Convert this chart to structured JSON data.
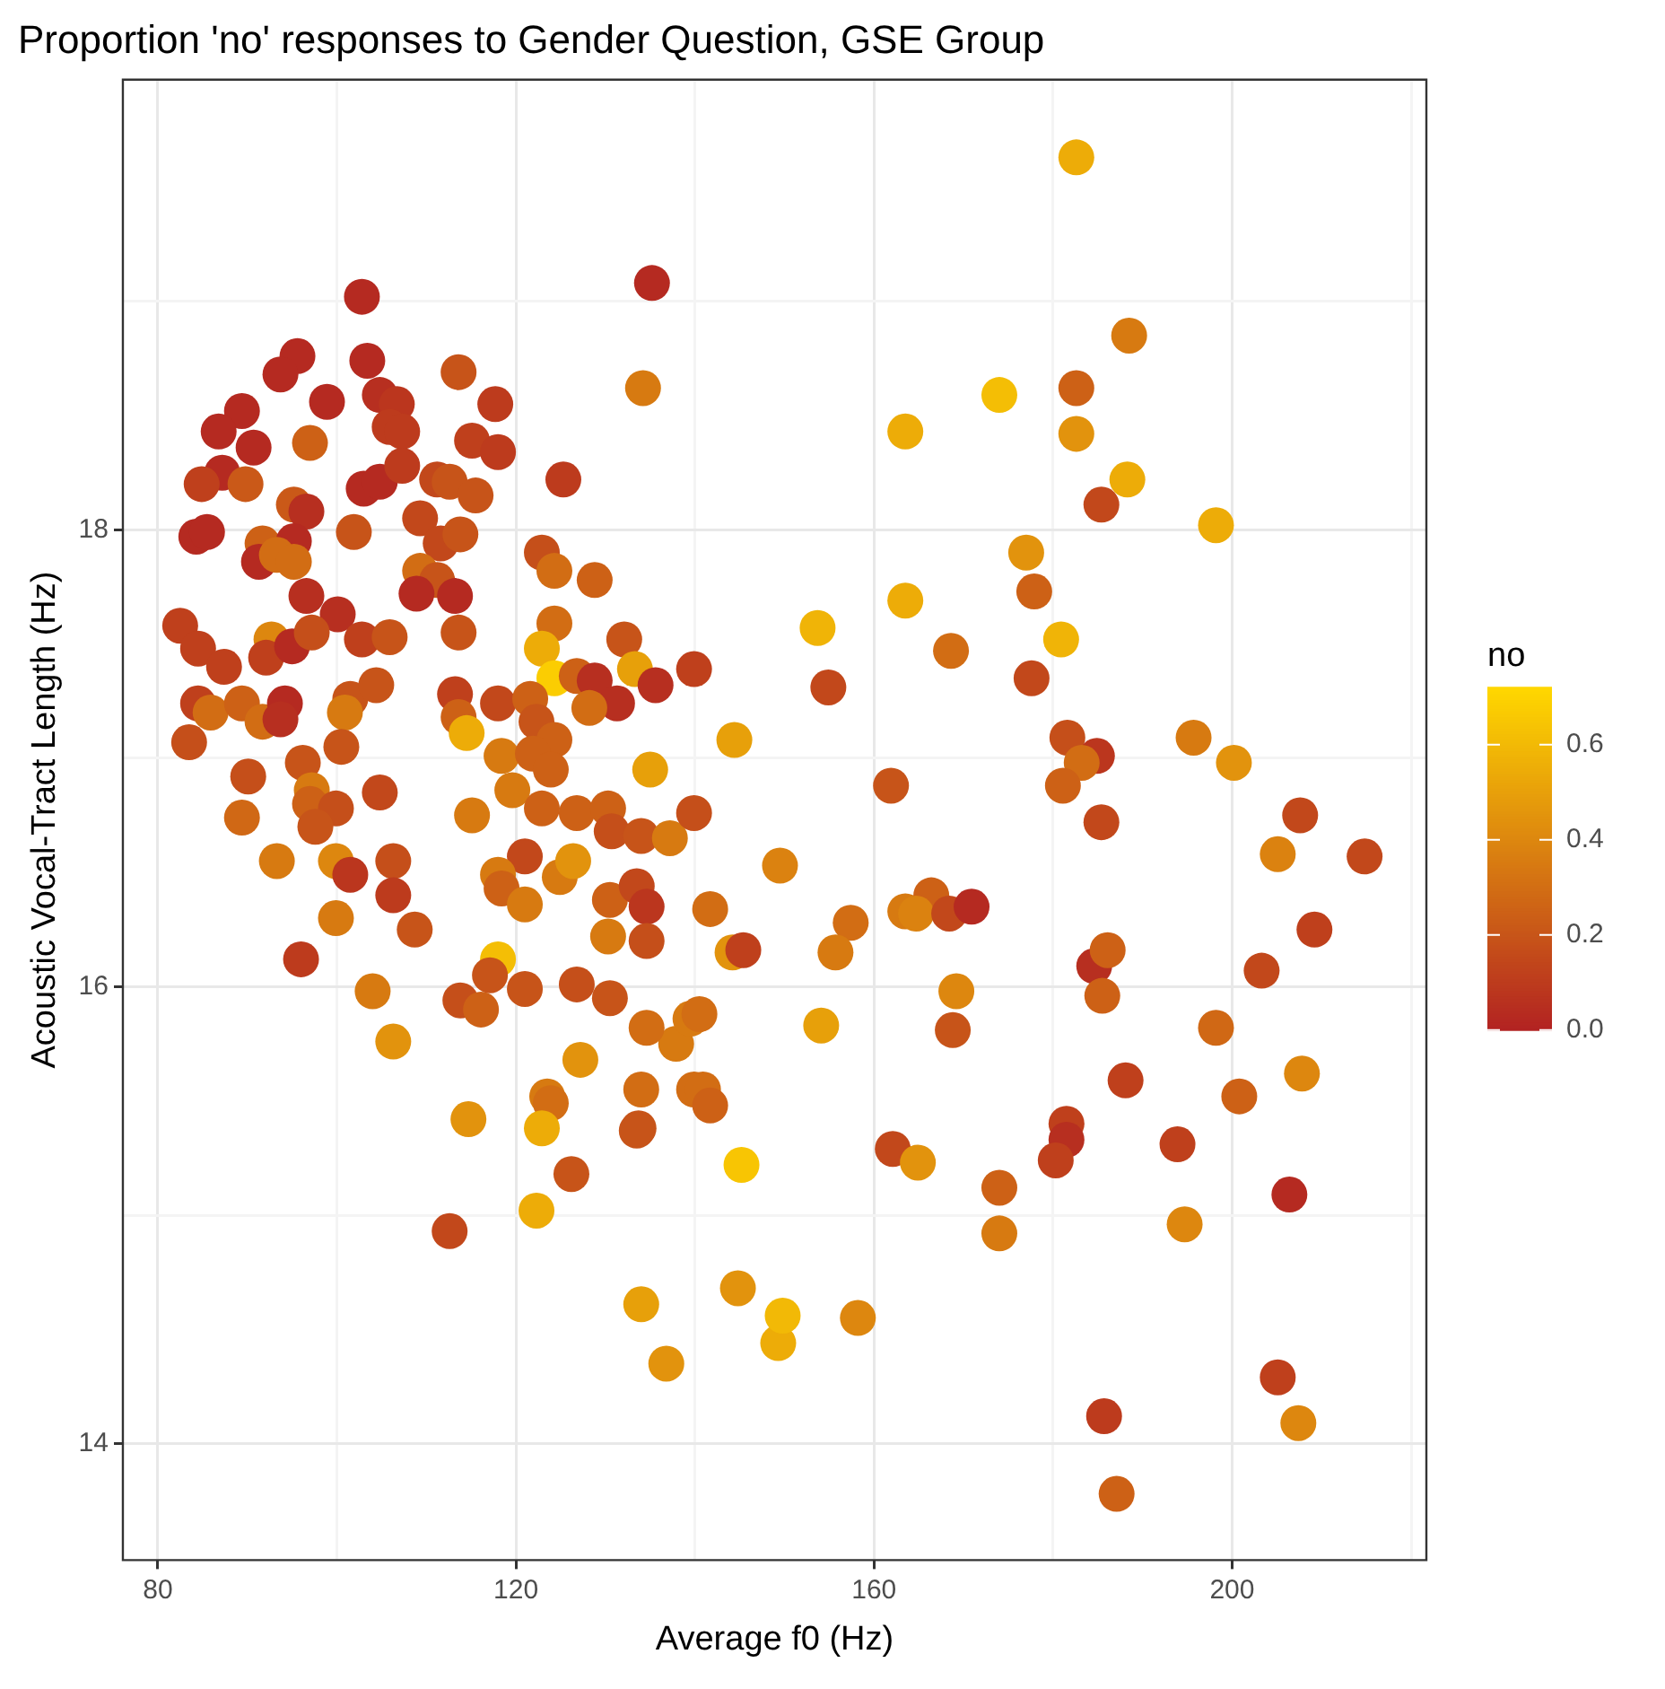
{
  "chart_data": {
    "type": "scatter",
    "title": "Proportion 'no' responses to Gender Question, GSE Group",
    "xlabel": "Average f0 (Hz)",
    "ylabel": "Acoustic Vocal-Tract Length (Hz)",
    "clabel": "no",
    "xlim": [
      76.1,
      221.7
    ],
    "xticks": [
      80,
      {
        "value": 100,
        "label": null
      },
      120,
      {
        "value": 140,
        "label": null
      },
      160,
      {
        "value": 180,
        "label": null
      },
      200,
      {
        "value": 220,
        "label": null
      }
    ],
    "ylim": [
      13.49,
      19.97
    ],
    "yticks": [
      14,
      {
        "value": 15,
        "label": null
      },
      16,
      {
        "value": 17,
        "label": null
      },
      18,
      {
        "value": 19,
        "label": null
      }
    ],
    "clim": [
      0,
      0.72
    ],
    "cticks": [
      {
        "value": 0,
        "label": "0.0"
      },
      0.2,
      0.4,
      0.6
    ],
    "grid": true,
    "marker": "circle",
    "x": [
      102.8,
      135.2,
      95.6,
      93.7,
      103.4,
      98.9,
      104.8,
      106.7,
      113.6,
      117.7,
      89.4,
      86.8,
      90.7,
      97.0,
      105.9,
      107.3,
      115.1,
      118.0,
      134.2,
      87.2,
      84.9,
      89.8,
      95.2,
      96.6,
      101.9,
      103.0,
      104.8,
      107.3,
      111.2,
      112.6,
      109.3,
      115.5,
      125.3,
      84.3,
      85.5,
      91.7,
      91.3,
      95.2,
      93.3,
      95.2,
      111.6,
      113.8,
      109.3,
      111.2,
      108.9,
      113.2,
      96.6,
      100.1,
      122.9,
      124.3,
      128.8,
      124.3,
      82.5,
      84.5,
      87.4,
      92.7,
      92.1,
      95.0,
      97.2,
      102.8,
      105.9,
      113.6,
      122.9,
      124.3,
      126.8,
      128.8,
      132.1,
      133.3,
      135.6,
      131.3,
      139.9,
      84.5,
      85.9,
      89.4,
      91.7,
      94.2,
      93.7,
      101.5,
      100.9,
      104.4,
      113.2,
      113.6,
      114.5,
      118.0,
      121.6,
      122.3,
      128.2,
      124.3,
      83.5,
      100.5,
      96.2,
      90.1,
      118.4,
      121.9,
      123.9,
      135.0,
      89.4,
      97.2,
      97.0,
      99.9,
      97.6,
      104.8,
      93.3,
      99.9,
      101.5,
      106.3,
      106.3,
      99.9,
      108.7,
      96.0,
      104.0,
      106.3,
      112.6,
      114.7,
      119.6,
      122.9,
      126.8,
      130.3,
      130.7,
      134.0,
      137.2,
      139.9,
      115.1,
      121.0,
      118.0,
      118.4,
      121.0,
      124.9,
      126.4,
      130.5,
      133.5,
      134.6,
      130.3,
      134.6,
      118.0,
      117.1,
      113.8,
      116.1,
      121.0,
      126.8,
      137.9,
      139.5,
      140.5,
      127.2,
      134.0,
      133.7,
      123.5,
      123.9,
      122.9,
      126.2,
      122.3,
      139.9,
      140.9,
      141.7,
      133.5,
      145.2,
      162.1,
      163.5,
      154.9,
      153.7,
      144.4,
      163.5,
      161.9,
      149.5,
      141.7,
      144.2,
      145.4,
      157.4,
      155.7,
      163.5,
      130.5,
      134.6,
      154.1,
      134.0,
      136.8,
      144.8,
      149.3,
      149.8,
      158.2,
      182.6,
      188.5,
      174.0,
      182.6,
      182.6,
      188.3,
      185.4,
      198.2,
      177.0,
      177.9,
      168.6,
      180.9,
      177.6,
      181.6,
      184.9,
      183.2,
      195.7,
      200.2,
      181.1,
      185.4,
      207.6,
      205.1,
      214.8,
      166.4,
      164.7,
      168.4,
      170.9,
      209.2,
      203.3,
      184.6,
      186.1,
      185.5,
      169.2,
      168.8,
      198.2,
      188.1,
      207.8,
      200.8,
      164.9,
      174.0,
      174.0,
      181.5,
      181.5,
      180.3,
      193.9,
      194.7,
      206.4,
      205.1,
      207.4,
      185.7,
      187.1
    ],
    "values": [
      19.02,
      19.08,
      18.76,
      18.68,
      18.74,
      18.56,
      18.59,
      18.55,
      18.69,
      18.55,
      18.52,
      18.43,
      18.36,
      18.38,
      18.45,
      18.43,
      18.39,
      18.34,
      18.62,
      18.25,
      18.2,
      18.2,
      18.11,
      18.08,
      17.99,
      18.18,
      18.21,
      18.28,
      18.22,
      18.21,
      18.05,
      18.15,
      18.22,
      17.97,
      17.99,
      17.94,
      17.86,
      17.95,
      17.89,
      17.86,
      17.94,
      17.98,
      17.82,
      17.78,
      17.72,
      17.71,
      17.71,
      17.63,
      17.9,
      17.82,
      17.78,
      17.59,
      17.58,
      17.48,
      17.4,
      17.52,
      17.44,
      17.49,
      17.55,
      17.52,
      17.53,
      17.55,
      17.48,
      17.35,
      17.36,
      17.34,
      17.52,
      17.39,
      17.32,
      17.24,
      17.39,
      17.24,
      17.2,
      17.24,
      17.16,
      17.24,
      17.17,
      17.26,
      17.2,
      17.32,
      17.28,
      17.18,
      17.11,
      17.24,
      17.26,
      17.16,
      17.22,
      17.08,
      17.07,
      17.05,
      16.98,
      16.92,
      17.01,
      17.02,
      16.95,
      16.95,
      16.74,
      16.86,
      16.8,
      16.78,
      16.7,
      16.85,
      16.55,
      16.55,
      16.49,
      16.55,
      16.4,
      16.3,
      16.25,
      16.12,
      15.98,
      15.76,
      14.93,
      15.42,
      16.86,
      16.78,
      16.76,
      16.78,
      16.68,
      16.66,
      16.65,
      16.76,
      16.75,
      16.57,
      16.49,
      16.43,
      16.36,
      16.48,
      16.55,
      16.38,
      16.44,
      16.35,
      16.22,
      16.2,
      16.12,
      16.05,
      15.94,
      15.9,
      15.99,
      16.01,
      15.75,
      15.86,
      15.88,
      15.68,
      15.55,
      15.38,
      15.52,
      15.49,
      15.38,
      15.18,
      15.02,
      15.55,
      15.55,
      15.48,
      15.37,
      15.22,
      15.29,
      18.43,
      17.31,
      17.57,
      17.08,
      17.69,
      16.88,
      16.53,
      16.34,
      16.15,
      16.16,
      16.28,
      16.15,
      16.33,
      15.95,
      15.82,
      15.83,
      14.61,
      14.35,
      14.68,
      14.44,
      14.56,
      14.55,
      19.63,
      18.85,
      18.59,
      18.62,
      18.42,
      18.22,
      18.11,
      18.02,
      17.9,
      17.73,
      17.47,
      17.52,
      17.35,
      17.09,
      17.01,
      16.98,
      17.09,
      16.98,
      16.88,
      16.72,
      16.75,
      16.58,
      16.57,
      16.4,
      16.32,
      16.32,
      16.35,
      16.25,
      16.07,
      16.09,
      16.16,
      15.96,
      15.98,
      15.81,
      15.82,
      15.59,
      15.62,
      15.52,
      15.23,
      15.12,
      14.92,
      15.4,
      15.33,
      15.24,
      15.31,
      14.96,
      15.09,
      14.29,
      14.09,
      14.12,
      13.78
    ],
    "cvalues": [
      0.03,
      0.03,
      0.03,
      0.03,
      0.03,
      0.03,
      0.05,
      0.08,
      0.2,
      0.1,
      0.03,
      0.03,
      0.03,
      0.25,
      0.1,
      0.1,
      0.12,
      0.1,
      0.35,
      0.03,
      0.12,
      0.22,
      0.22,
      0.05,
      0.2,
      0.03,
      0.03,
      0.1,
      0.15,
      0.2,
      0.15,
      0.2,
      0.1,
      0.03,
      0.03,
      0.25,
      0.03,
      0.03,
      0.3,
      0.3,
      0.15,
      0.2,
      0.3,
      0.2,
      0.03,
      0.03,
      0.05,
      0.05,
      0.18,
      0.3,
      0.25,
      0.3,
      0.12,
      0.12,
      0.12,
      0.4,
      0.12,
      0.03,
      0.18,
      0.12,
      0.2,
      0.2,
      0.55,
      0.68,
      0.25,
      0.05,
      0.2,
      0.5,
      0.05,
      0.05,
      0.12,
      0.12,
      0.3,
      0.25,
      0.3,
      0.03,
      0.05,
      0.2,
      0.35,
      0.2,
      0.12,
      0.25,
      0.55,
      0.15,
      0.25,
      0.2,
      0.3,
      0.25,
      0.18,
      0.2,
      0.2,
      0.18,
      0.35,
      0.25,
      0.25,
      0.5,
      0.28,
      0.35,
      0.25,
      0.18,
      0.2,
      0.15,
      0.35,
      0.4,
      0.08,
      0.18,
      0.1,
      0.35,
      0.2,
      0.1,
      0.35,
      0.45,
      0.15,
      0.45,
      0.35,
      0.25,
      0.25,
      0.25,
      0.18,
      0.2,
      0.35,
      0.18,
      0.35,
      0.15,
      0.35,
      0.25,
      0.35,
      0.35,
      0.45,
      0.25,
      0.15,
      0.08,
      0.35,
      0.18,
      0.62,
      0.2,
      0.18,
      0.25,
      0.2,
      0.18,
      0.35,
      0.35,
      0.3,
      0.45,
      0.3,
      0.2,
      0.35,
      0.3,
      0.55,
      0.2,
      0.55,
      0.3,
      0.3,
      0.25,
      0.2,
      0.65,
      0.15,
      0.55,
      0.15,
      0.58,
      0.5,
      0.55,
      0.2,
      0.38,
      0.3,
      0.45,
      0.12,
      0.3,
      0.35,
      0.35,
      0.2,
      0.3,
      0.5,
      0.5,
      0.45,
      0.45,
      0.55,
      0.6,
      0.4,
      0.55,
      0.35,
      0.62,
      0.25,
      0.45,
      0.55,
      0.15,
      0.55,
      0.45,
      0.25,
      0.3,
      0.58,
      0.15,
      0.18,
      0.08,
      0.3,
      0.35,
      0.45,
      0.25,
      0.15,
      0.15,
      0.38,
      0.15,
      0.25,
      0.38,
      0.15,
      0.03,
      0.12,
      0.15,
      0.05,
      0.25,
      0.25,
      0.4,
      0.2,
      0.28,
      0.12,
      0.4,
      0.25,
      0.45,
      0.25,
      0.35,
      0.12,
      0.05,
      0.12,
      0.12,
      0.4,
      0.03,
      0.12,
      0.4,
      0.1,
      0.25
    ]
  }
}
